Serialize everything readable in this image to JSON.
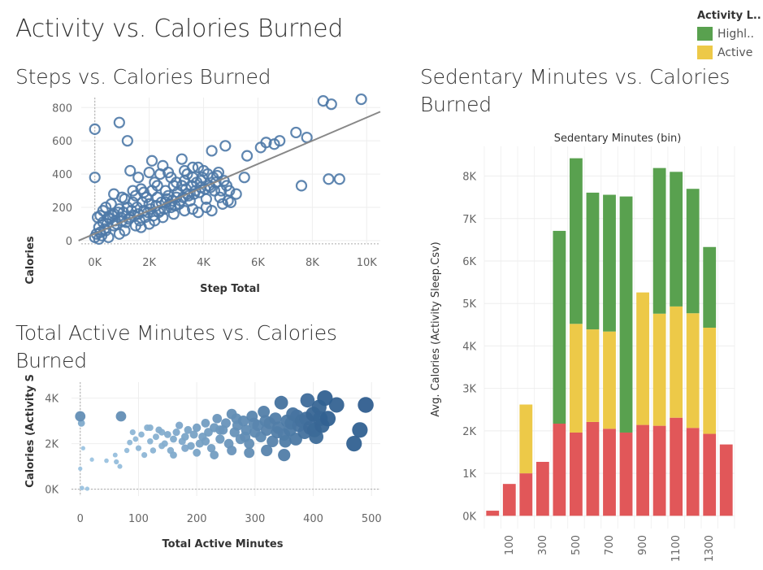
{
  "dashboard": {
    "title": "Activity vs. Calories Burned"
  },
  "legend": {
    "title": "Activity L..",
    "items": [
      {
        "label": "Highl..",
        "color": "#59a14f"
      },
      {
        "label": "Active",
        "color": "#edc948"
      }
    ]
  },
  "chart_data": [
    {
      "id": "steps",
      "type": "scatter",
      "title": "Steps vs. Calories Burned",
      "xlabel": "Step Total",
      "ylabel": "Calories",
      "xlim": [
        -500,
        10500
      ],
      "ylim": [
        -20,
        860
      ],
      "x_ticks": [
        0,
        2000,
        4000,
        6000,
        8000,
        10000
      ],
      "x_tick_labels": [
        "0K",
        "2K",
        "4K",
        "6K",
        "8K",
        "10K"
      ],
      "y_ticks": [
        0,
        200,
        400,
        600,
        800
      ],
      "y_tick_labels": [
        "0",
        "200",
        "400",
        "600",
        "800"
      ],
      "marker": "hollow circle",
      "color": "#4e79a7",
      "trend_line": {
        "x": [
          -600,
          10500
        ],
        "y": [
          0,
          775
        ]
      },
      "points": [
        [
          0,
          670
        ],
        [
          900,
          710
        ],
        [
          1200,
          600
        ],
        [
          0,
          380
        ],
        [
          2100,
          480
        ],
        [
          2500,
          450
        ],
        [
          2700,
          410
        ],
        [
          3200,
          490
        ],
        [
          3800,
          440
        ],
        [
          4300,
          540
        ],
        [
          4800,
          570
        ],
        [
          5600,
          510
        ],
        [
          6100,
          560
        ],
        [
          6300,
          590
        ],
        [
          6600,
          580
        ],
        [
          6800,
          600
        ],
        [
          7400,
          650
        ],
        [
          7800,
          620
        ],
        [
          8400,
          840
        ],
        [
          8700,
          820
        ],
        [
          9800,
          850
        ],
        [
          7600,
          330
        ],
        [
          8600,
          370
        ],
        [
          9000,
          370
        ],
        [
          5500,
          380
        ],
        [
          5200,
          280
        ],
        [
          4100,
          250
        ],
        [
          4600,
          260
        ],
        [
          4900,
          240
        ],
        [
          3900,
          320
        ],
        [
          3600,
          380
        ],
        [
          3300,
          360
        ],
        [
          2900,
          330
        ],
        [
          2600,
          300
        ],
        [
          2200,
          350
        ],
        [
          1700,
          310
        ],
        [
          1500,
          270
        ],
        [
          1100,
          250
        ],
        [
          900,
          190
        ],
        [
          700,
          160
        ],
        [
          500,
          140
        ],
        [
          300,
          110
        ],
        [
          150,
          80
        ],
        [
          60,
          40
        ],
        [
          0,
          20
        ],
        [
          1800,
          180
        ],
        [
          2000,
          220
        ],
        [
          2300,
          260
        ],
        [
          2600,
          230
        ],
        [
          3000,
          260
        ],
        [
          3400,
          280
        ],
        [
          3700,
          300
        ],
        [
          4200,
          330
        ],
        [
          4400,
          300
        ],
        [
          3500,
          240
        ],
        [
          3100,
          220
        ],
        [
          2800,
          200
        ],
        [
          2400,
          180
        ],
        [
          1600,
          160
        ],
        [
          1300,
          140
        ],
        [
          1000,
          120
        ],
        [
          800,
          100
        ],
        [
          400,
          60
        ],
        [
          200,
          50
        ],
        [
          1200,
          200
        ],
        [
          1400,
          230
        ],
        [
          1900,
          260
        ],
        [
          2100,
          300
        ],
        [
          2700,
          270
        ],
        [
          3200,
          330
        ],
        [
          3900,
          360
        ],
        [
          4500,
          390
        ],
        [
          4000,
          420
        ],
        [
          3600,
          440
        ],
        [
          3300,
          420
        ],
        [
          2800,
          380
        ],
        [
          2400,
          400
        ],
        [
          2000,
          410
        ],
        [
          1600,
          380
        ],
        [
          1300,
          420
        ],
        [
          600,
          220
        ],
        [
          300,
          180
        ],
        [
          100,
          140
        ],
        [
          700,
          90
        ],
        [
          1100,
          60
        ],
        [
          1500,
          90
        ],
        [
          2200,
          120
        ],
        [
          2500,
          140
        ],
        [
          2900,
          160
        ],
        [
          3300,
          180
        ],
        [
          3600,
          190
        ],
        [
          4100,
          200
        ],
        [
          4700,
          220
        ],
        [
          5000,
          230
        ],
        [
          4300,
          180
        ],
        [
          3800,
          170
        ],
        [
          2000,
          100
        ],
        [
          1700,
          80
        ],
        [
          900,
          40
        ],
        [
          500,
          20
        ],
        [
          150,
          10
        ],
        [
          250,
          30
        ],
        [
          350,
          70
        ],
        [
          450,
          100
        ],
        [
          550,
          130
        ],
        [
          650,
          150
        ],
        [
          750,
          120
        ],
        [
          850,
          170
        ],
        [
          950,
          140
        ],
        [
          1050,
          170
        ],
        [
          1150,
          110
        ],
        [
          1250,
          130
        ],
        [
          1350,
          180
        ],
        [
          1450,
          150
        ],
        [
          1550,
          200
        ],
        [
          1650,
          120
        ],
        [
          1750,
          230
        ],
        [
          1850,
          140
        ],
        [
          1950,
          170
        ],
        [
          2050,
          190
        ],
        [
          2150,
          150
        ],
        [
          2250,
          210
        ],
        [
          2350,
          170
        ],
        [
          2450,
          230
        ],
        [
          2550,
          190
        ],
        [
          2650,
          250
        ],
        [
          2750,
          220
        ],
        [
          2850,
          240
        ],
        [
          2950,
          210
        ],
        [
          3050,
          290
        ],
        [
          3150,
          240
        ],
        [
          3250,
          260
        ],
        [
          3350,
          310
        ],
        [
          3450,
          270
        ],
        [
          3550,
          330
        ],
        [
          3650,
          280
        ],
        [
          3750,
          350
        ],
        [
          3850,
          290
        ],
        [
          3950,
          380
        ],
        [
          4050,
          310
        ],
        [
          4150,
          400
        ],
        [
          4250,
          320
        ],
        [
          4350,
          380
        ],
        [
          4450,
          350
        ],
        [
          4550,
          410
        ],
        [
          4650,
          300
        ],
        [
          4750,
          360
        ],
        [
          4850,
          330
        ],
        [
          4950,
          300
        ],
        [
          3000,
          350
        ],
        [
          3400,
          400
        ],
        [
          2300,
          330
        ],
        [
          1800,
          290
        ],
        [
          1400,
          300
        ],
        [
          1000,
          260
        ],
        [
          700,
          280
        ],
        [
          400,
          200
        ],
        [
          200,
          150
        ]
      ]
    },
    {
      "id": "active-minutes",
      "type": "scatter",
      "title": "Total Active Minutes vs. Calories Burned",
      "xlabel": "Total Active Minutes",
      "ylabel": "Calories (Activity S..",
      "xlim": [
        -15,
        515
      ],
      "ylim": [
        -300,
        4700
      ],
      "x_ticks": [
        0,
        100,
        200,
        300,
        400,
        500
      ],
      "x_tick_labels": [
        "0",
        "100",
        "200",
        "300",
        "400",
        "500"
      ],
      "y_ticks": [
        0,
        2000,
        4000
      ],
      "y_tick_labels": [
        "0K",
        "2K",
        "4K"
      ],
      "marker": "filled circle, size and color by value",
      "color_range": [
        "#a6cde8",
        "#2c5b8c"
      ],
      "points": [
        [
          0,
          3200,
          0.55
        ],
        [
          2,
          2900,
          0.3
        ],
        [
          5,
          1800,
          0.08
        ],
        [
          0,
          900,
          0.08
        ],
        [
          3,
          50,
          0.1
        ],
        [
          12,
          20,
          0.08
        ],
        [
          70,
          3200,
          0.55
        ],
        [
          20,
          1300,
          0.08
        ],
        [
          45,
          1250,
          0.1
        ],
        [
          60,
          1500,
          0.12
        ],
        [
          62,
          1200,
          0.14
        ],
        [
          68,
          1000,
          0.13
        ],
        [
          80,
          1700,
          0.15
        ],
        [
          85,
          2050,
          0.18
        ],
        [
          90,
          2500,
          0.2
        ],
        [
          95,
          2200,
          0.18
        ],
        [
          100,
          1800,
          0.2
        ],
        [
          105,
          2400,
          0.22
        ],
        [
          110,
          1500,
          0.2
        ],
        [
          115,
          2700,
          0.25
        ],
        [
          120,
          2100,
          0.22
        ],
        [
          125,
          1700,
          0.22
        ],
        [
          130,
          2300,
          0.25
        ],
        [
          135,
          2600,
          0.28
        ],
        [
          140,
          1900,
          0.25
        ],
        [
          145,
          2000,
          0.26
        ],
        [
          150,
          2400,
          0.3
        ],
        [
          155,
          1700,
          0.28
        ],
        [
          160,
          2200,
          0.3
        ],
        [
          165,
          2500,
          0.32
        ],
        [
          170,
          2800,
          0.33
        ],
        [
          175,
          2100,
          0.32
        ],
        [
          180,
          2300,
          0.35
        ],
        [
          185,
          2600,
          0.36
        ],
        [
          190,
          1900,
          0.35
        ],
        [
          195,
          2400,
          0.38
        ],
        [
          200,
          2700,
          0.4
        ],
        [
          205,
          2000,
          0.38
        ],
        [
          210,
          2300,
          0.4
        ],
        [
          215,
          2900,
          0.42
        ],
        [
          220,
          2500,
          0.42
        ],
        [
          225,
          1800,
          0.4
        ],
        [
          230,
          2700,
          0.45
        ],
        [
          235,
          3100,
          0.48
        ],
        [
          240,
          2200,
          0.45
        ],
        [
          245,
          2600,
          0.48
        ],
        [
          250,
          2900,
          0.5
        ],
        [
          255,
          2000,
          0.48
        ],
        [
          260,
          3300,
          0.55
        ],
        [
          265,
          2500,
          0.52
        ],
        [
          270,
          2800,
          0.55
        ],
        [
          275,
          2200,
          0.52
        ],
        [
          280,
          3000,
          0.58
        ],
        [
          285,
          2600,
          0.57
        ],
        [
          290,
          2000,
          0.55
        ],
        [
          295,
          3200,
          0.62
        ],
        [
          300,
          2500,
          0.6
        ],
        [
          305,
          2800,
          0.62
        ],
        [
          310,
          2300,
          0.6
        ],
        [
          315,
          3400,
          0.68
        ],
        [
          320,
          2600,
          0.65
        ],
        [
          325,
          2900,
          0.67
        ],
        [
          330,
          2100,
          0.65
        ],
        [
          335,
          3100,
          0.7
        ],
        [
          340,
          2700,
          0.7
        ],
        [
          345,
          3800,
          0.8
        ],
        [
          350,
          2400,
          0.7
        ],
        [
          355,
          3000,
          0.73
        ],
        [
          360,
          2600,
          0.73
        ],
        [
          365,
          3300,
          0.78
        ],
        [
          370,
          2200,
          0.74
        ],
        [
          375,
          2800,
          0.77
        ],
        [
          380,
          3000,
          0.8
        ],
        [
          385,
          2500,
          0.8
        ],
        [
          390,
          3900,
          0.85
        ],
        [
          395,
          2700,
          0.85
        ],
        [
          400,
          3300,
          0.9
        ],
        [
          405,
          2300,
          0.86
        ],
        [
          410,
          3600,
          0.9
        ],
        [
          415,
          2800,
          0.9
        ],
        [
          420,
          4000,
          0.95
        ],
        [
          425,
          3100,
          0.95
        ],
        [
          440,
          3700,
          0.93
        ],
        [
          470,
          2000,
          0.95
        ],
        [
          480,
          2600,
          0.95
        ],
        [
          490,
          3700,
          0.97
        ],
        [
          215,
          2100,
          0.4
        ],
        [
          240,
          2600,
          0.46
        ],
        [
          268,
          3100,
          0.55
        ],
        [
          283,
          2300,
          0.56
        ],
        [
          298,
          2900,
          0.6
        ],
        [
          318,
          3000,
          0.66
        ],
        [
          338,
          2500,
          0.69
        ],
        [
          352,
          2100,
          0.71
        ],
        [
          362,
          2900,
          0.75
        ],
        [
          372,
          3200,
          0.78
        ],
        [
          388,
          3100,
          0.82
        ],
        [
          402,
          2600,
          0.87
        ],
        [
          412,
          3100,
          0.9
        ],
        [
          180,
          1800,
          0.33
        ],
        [
          160,
          1500,
          0.3
        ],
        [
          140,
          2500,
          0.27
        ],
        [
          120,
          2700,
          0.25
        ],
        [
          200,
          1600,
          0.36
        ],
        [
          230,
          1500,
          0.42
        ],
        [
          260,
          1700,
          0.5
        ],
        [
          290,
          1600,
          0.56
        ],
        [
          320,
          1700,
          0.64
        ],
        [
          350,
          1500,
          0.7
        ]
      ]
    },
    {
      "id": "sedentary",
      "type": "bar",
      "stacked": true,
      "title": "Sedentary Minutes vs. Calories Burned",
      "header": "Sedentary Minutes (bin)",
      "xlabel": "",
      "ylabel": "Avg. Calories (Activity Sleep.Csv)",
      "ylim": [
        -300,
        8700
      ],
      "y_ticks": [
        0,
        1000,
        2000,
        3000,
        4000,
        5000,
        6000,
        7000,
        8000
      ],
      "y_tick_labels": [
        "0K",
        "1K",
        "2K",
        "3K",
        "4K",
        "5K",
        "6K",
        "7K",
        "8K"
      ],
      "categories": [
        "0",
        "100",
        "200",
        "300",
        "400",
        "500",
        "600",
        "700",
        "800",
        "900",
        "1000",
        "1100",
        "1200",
        "1300",
        "1400"
      ],
      "category_labels": [
        "",
        "100",
        "",
        "300",
        "",
        "500",
        "",
        "700",
        "",
        "900",
        "",
        "1100",
        "",
        "1300",
        ""
      ],
      "series": [
        {
          "color": "#e15759",
          "values": [
            120,
            750,
            1000,
            1270,
            2170,
            1960,
            2210,
            2050,
            1960,
            2140,
            2120,
            2310,
            2070,
            1930,
            1680
          ]
        },
        {
          "name": "Active",
          "color": "#edc948",
          "values": [
            0,
            0,
            1620,
            0,
            0,
            2560,
            2180,
            2290,
            0,
            3120,
            2640,
            2620,
            2700,
            2500,
            0
          ]
        },
        {
          "name": "Highl..",
          "color": "#59a14f",
          "values": [
            0,
            0,
            0,
            0,
            4540,
            3900,
            3220,
            3220,
            5560,
            0,
            3430,
            3170,
            2930,
            1900,
            0
          ]
        }
      ]
    }
  ]
}
